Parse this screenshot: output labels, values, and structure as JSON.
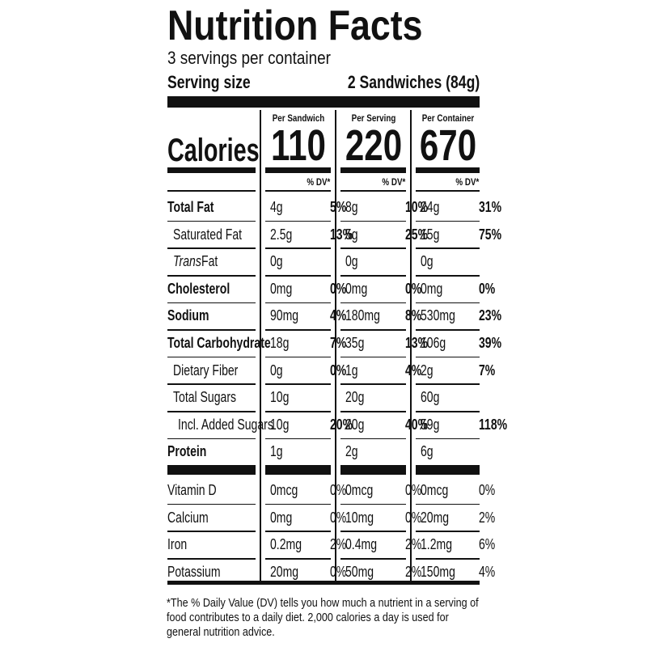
{
  "header": {
    "title": "Nutrition Facts",
    "servings": "3 servings per container",
    "serving_size_label": "Serving size",
    "serving_size_value": "2 Sandwiches (84g)"
  },
  "calories_label": "Calories",
  "columns": [
    {
      "heading": "Per Sandwich",
      "calories": 110,
      "dv_heading": "% DV*"
    },
    {
      "heading": "Per Serving",
      "calories": 220,
      "dv_heading": "% DV*"
    },
    {
      "heading": "Per Container",
      "calories": 670,
      "dv_heading": "% DV*"
    }
  ],
  "nutrients": [
    {
      "name": "Total Fat",
      "bold": true,
      "indent": 0,
      "values": [
        [
          "4g",
          "5%"
        ],
        [
          "8g",
          "10%"
        ],
        [
          "24g",
          "31%"
        ]
      ]
    },
    {
      "name": "Saturated Fat",
      "bold": false,
      "indent": 1,
      "values": [
        [
          "2.5g",
          "13%"
        ],
        [
          "5g",
          "25%"
        ],
        [
          "15g",
          "75%"
        ]
      ]
    },
    {
      "italic_prefix": "Trans",
      "name": "Fat",
      "bold": false,
      "indent": 1,
      "values": [
        [
          "0g"
        ],
        [
          "0g"
        ],
        [
          "0g"
        ]
      ]
    },
    {
      "name": "Cholesterol",
      "bold": true,
      "indent": 0,
      "values": [
        [
          "0mg",
          "0%"
        ],
        [
          "0mg",
          "0%"
        ],
        [
          "0mg",
          "0%"
        ]
      ]
    },
    {
      "name": "Sodium",
      "bold": true,
      "indent": 0,
      "values": [
        [
          "90mg",
          "4%"
        ],
        [
          "180mg",
          "8%"
        ],
        [
          "530mg",
          "23%"
        ]
      ]
    },
    {
      "name": "Total Carbohydrate",
      "bold": true,
      "indent": 0,
      "values": [
        [
          "18g",
          "7%"
        ],
        [
          "35g",
          "13%"
        ],
        [
          "106g",
          "39%"
        ]
      ]
    },
    {
      "name": "Dietary Fiber",
      "bold": false,
      "indent": 1,
      "values": [
        [
          "0g",
          "0%"
        ],
        [
          "1g",
          "4%"
        ],
        [
          "2g",
          "7%"
        ]
      ]
    },
    {
      "name": "Total Sugars",
      "bold": false,
      "indent": 1,
      "values": [
        [
          "10g"
        ],
        [
          "20g"
        ],
        [
          "60g"
        ]
      ]
    },
    {
      "name": "Incl. Added Sugars",
      "bold": false,
      "indent": 2,
      "values": [
        [
          "10g",
          "20%"
        ],
        [
          "20g",
          "40%"
        ],
        [
          "59g",
          "118%"
        ]
      ]
    },
    {
      "name": "Protein",
      "bold": true,
      "indent": 0,
      "values": [
        [
          "1g"
        ],
        [
          "2g"
        ],
        [
          "6g"
        ]
      ]
    }
  ],
  "vitamins": [
    {
      "name": "Vitamin D",
      "values": [
        [
          "0mcg",
          "0%"
        ],
        [
          "0mcg",
          "0%"
        ],
        [
          "0mcg",
          "0%"
        ]
      ]
    },
    {
      "name": "Calcium",
      "values": [
        [
          "0mg",
          "0%"
        ],
        [
          "10mg",
          "0%"
        ],
        [
          "20mg",
          "2%"
        ]
      ]
    },
    {
      "name": "Iron",
      "values": [
        [
          "0.2mg",
          "2%"
        ],
        [
          "0.4mg",
          "2%"
        ],
        [
          "1.2mg",
          "6%"
        ]
      ]
    },
    {
      "name": "Potassium",
      "values": [
        [
          "20mg",
          "0%"
        ],
        [
          "50mg",
          "2%"
        ],
        [
          "150mg",
          "4%"
        ]
      ]
    }
  ],
  "footnote": [
    "*The % Daily Value (DV) tells you how much a nutrient in a serving of",
    "food contributes to a daily diet. 2,000 calories a day is used for",
    "general nutrition advice."
  ]
}
